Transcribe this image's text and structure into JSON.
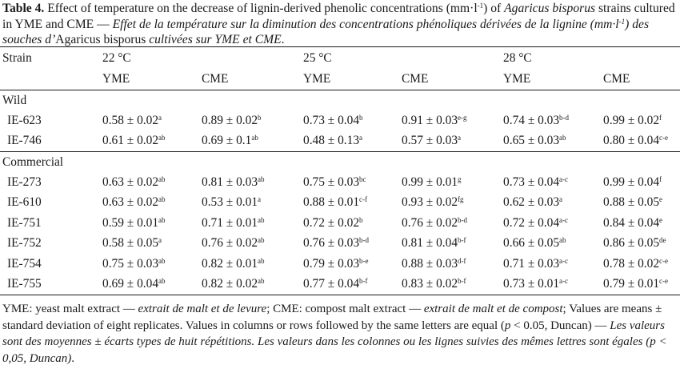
{
  "caption": {
    "label": "Table 4.",
    "text_en_1": " Effect of temperature on the decrease of lignin-derived phenolic concentrations (mm·l",
    "unit_sup": "-1",
    "text_en_2": ") of ",
    "species": "Agaricus bisporus",
    "text_en_3": " strains cultured in YME and CME — ",
    "text_fr_1": "Effet de la température sur la diminution des concentrations phénoliques dérivées de la lignine (mm·l",
    "text_fr_2": ") des souches d’",
    "species_fr": "Agaricus bisporus",
    "text_fr_3": " cultivées sur YME et CME",
    "text_end": "."
  },
  "table": {
    "strain_header": "Strain",
    "temperatures": [
      "22 °C",
      "25 °C",
      "28 °C"
    ],
    "media": [
      "YME",
      "CME"
    ],
    "groups": [
      {
        "name": "Wild",
        "rows": [
          {
            "strain": "IE-623",
            "cells": [
              {
                "v": "0.58 ± 0.02",
                "s": "a"
              },
              {
                "v": "0.89 ± 0.02",
                "s": "b"
              },
              {
                "v": "0.73 ± 0.04",
                "s": "b"
              },
              {
                "v": "0.91 ± 0.03",
                "s": "e-g"
              },
              {
                "v": "0.74 ± 0.03",
                "s": "b-d"
              },
              {
                "v": "0.99 ± 0.02",
                "s": "f"
              }
            ]
          },
          {
            "strain": "IE-746",
            "cells": [
              {
                "v": "0.61 ± 0.02",
                "s": "ab"
              },
              {
                "v": "0.69 ± 0.1",
                "s": "ab"
              },
              {
                "v": "0.48 ± 0.13",
                "s": "a"
              },
              {
                "v": "0.57 ± 0.03",
                "s": "a"
              },
              {
                "v": "0.65 ± 0.03",
                "s": "ab"
              },
              {
                "v": "0.80 ± 0.04",
                "s": "c-e"
              }
            ]
          }
        ]
      },
      {
        "name": "Commercial",
        "rows": [
          {
            "strain": "IE-273",
            "cells": [
              {
                "v": "0.63 ± 0.02",
                "s": "ab"
              },
              {
                "v": "0.81 ± 0.03",
                "s": "ab"
              },
              {
                "v": "0.75 ± 0.03",
                "s": "bc"
              },
              {
                "v": "0.99 ± 0.01",
                "s": "g"
              },
              {
                "v": "0.73 ± 0.04",
                "s": "a-c"
              },
              {
                "v": "0.99 ± 0.04",
                "s": "f"
              }
            ]
          },
          {
            "strain": "IE-610",
            "cells": [
              {
                "v": "0.63 ± 0.02",
                "s": "ab"
              },
              {
                "v": "0.53 ± 0.01",
                "s": "a"
              },
              {
                "v": "0.88 ± 0.01",
                "s": "c-f"
              },
              {
                "v": "0.93 ± 0.02",
                "s": "fg"
              },
              {
                "v": "0.62 ± 0.03",
                "s": "a"
              },
              {
                "v": "0.88 ± 0.05",
                "s": "e"
              }
            ]
          },
          {
            "strain": "IE-751",
            "cells": [
              {
                "v": "0.59 ± 0.01",
                "s": "ab"
              },
              {
                "v": "0.71 ± 0.01",
                "s": "ab"
              },
              {
                "v": "0.72 ± 0.02",
                "s": "b"
              },
              {
                "v": "0.76 ± 0.02",
                "s": "b-d"
              },
              {
                "v": "0.72 ± 0.04",
                "s": "a-c"
              },
              {
                "v": "0.84 ± 0.04",
                "s": "e"
              }
            ]
          },
          {
            "strain": "IE-752",
            "cells": [
              {
                "v": "0.58 ± 0.05",
                "s": "a"
              },
              {
                "v": "0.76 ± 0.02",
                "s": "ab"
              },
              {
                "v": "0.76 ± 0.03",
                "s": "b-d"
              },
              {
                "v": "0.81 ± 0.04",
                "s": "b-f"
              },
              {
                "v": "0.66 ± 0.05",
                "s": "ab"
              },
              {
                "v": "0.86 ± 0.05",
                "s": "de"
              }
            ]
          },
          {
            "strain": "IE-754",
            "cells": [
              {
                "v": "0.75 ± 0.03",
                "s": "ab"
              },
              {
                "v": "0.82 ± 0.01",
                "s": "ab"
              },
              {
                "v": "0.79 ± 0.03",
                "s": "b-e"
              },
              {
                "v": "0.88 ± 0.03",
                "s": "d-f"
              },
              {
                "v": "0.71 ± 0.03",
                "s": "a-c"
              },
              {
                "v": "0.78 ± 0.02",
                "s": "c-e"
              }
            ]
          },
          {
            "strain": "IE-755",
            "cells": [
              {
                "v": "0.69 ± 0.04",
                "s": "ab"
              },
              {
                "v": "0.82 ± 0.02",
                "s": "ab"
              },
              {
                "v": "0.77 ± 0.04",
                "s": "b-f"
              },
              {
                "v": "0.83 ± 0.02",
                "s": "b-f"
              },
              {
                "v": "0.73 ± 0.01",
                "s": "a-c"
              },
              {
                "v": "0.79 ± 0.01",
                "s": "c-e"
              }
            ]
          }
        ]
      }
    ]
  },
  "footnote": {
    "p1": "YME: yeast malt extract — ",
    "p2": "extrait de malt et de levure",
    "p3": "; CME: compost malt extract — ",
    "p4": "extrait de malt et de compost",
    "p5": "; Values are means ± standard deviation of eight replicates. Values in columns or rows followed by the same letters are equal (",
    "p6": "p",
    "p7": " < 0.05, Duncan) — ",
    "p8": "Les valeurs sont des moyennes ± écarts types de huit répétitions. Les valeurs dans les colonnes ou les lignes suivies des mêmes lettres sont égales (",
    "p9": "p",
    "p10": " < 0,05, Duncan)",
    "p11": "."
  }
}
